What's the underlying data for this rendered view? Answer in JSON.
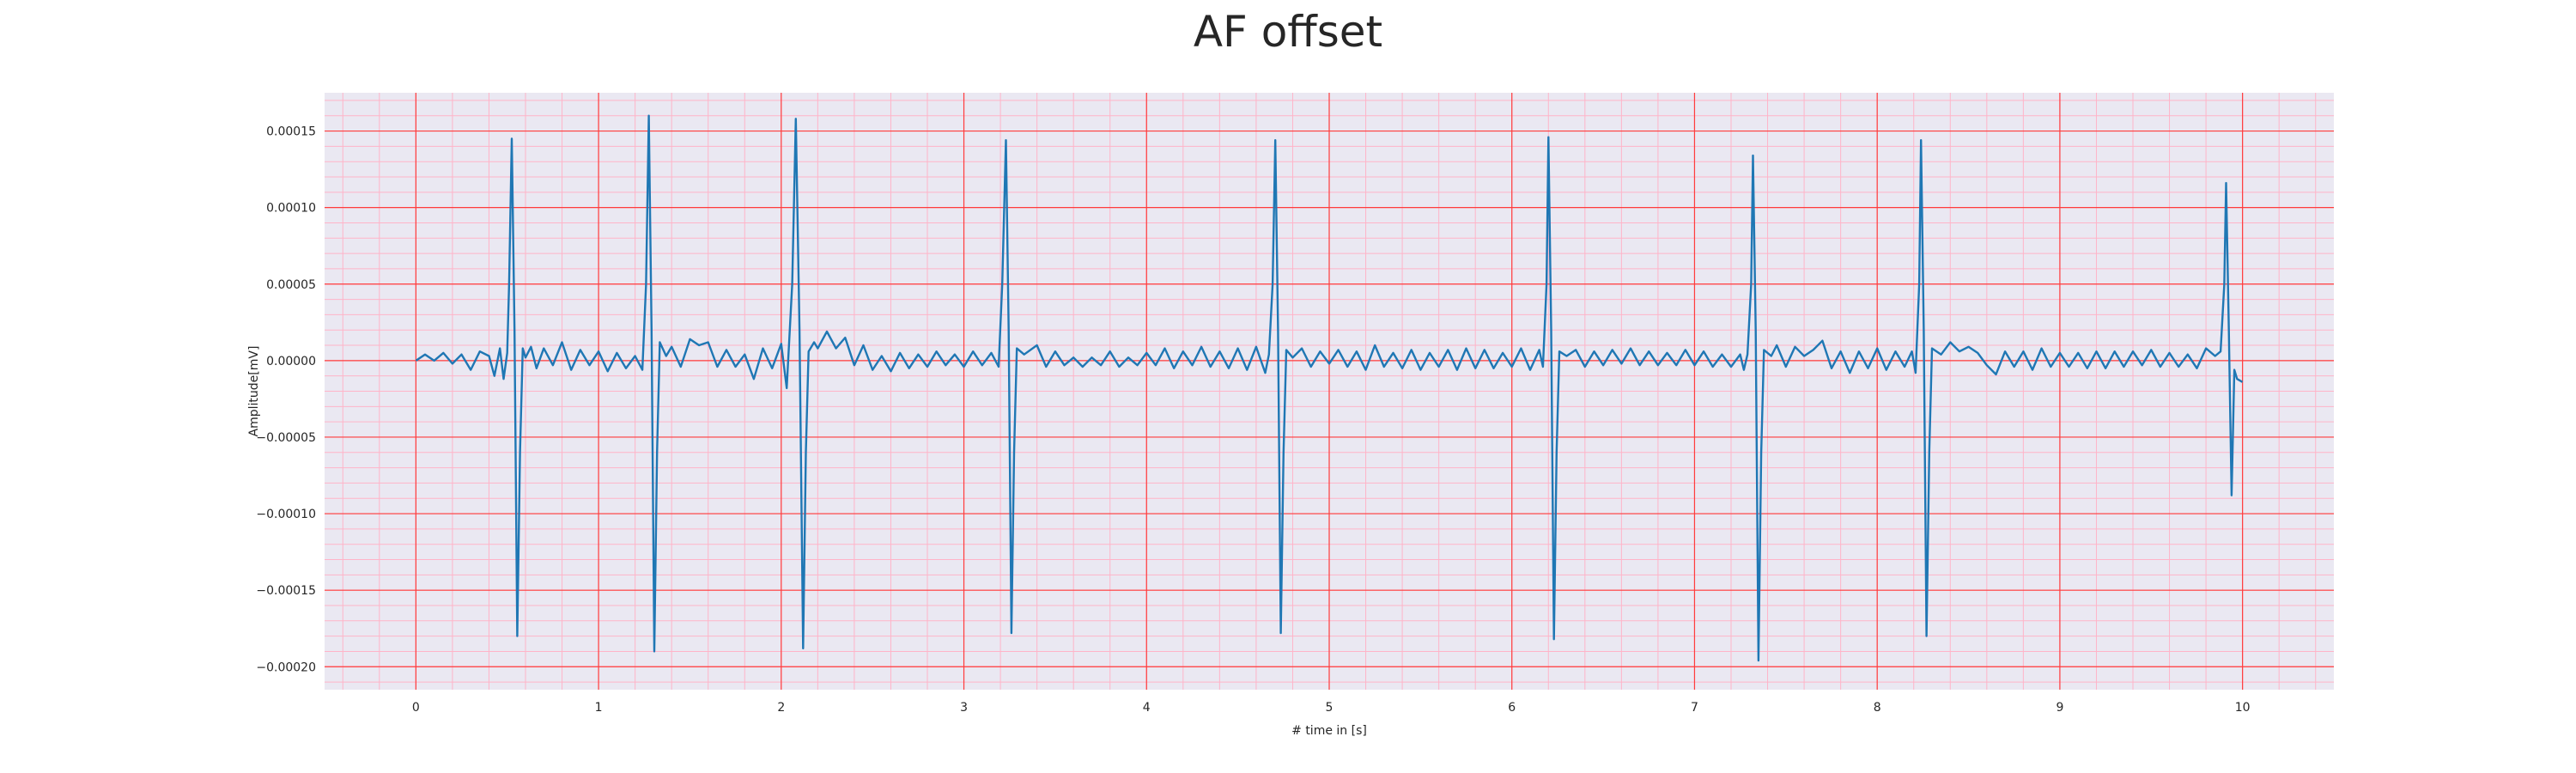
{
  "chart_data": {
    "type": "line",
    "title": "AF offset",
    "xlabel": "# time in [s]",
    "ylabel": "Amplitude[mV]",
    "xlim": [
      -0.5,
      10.5
    ],
    "ylim": [
      -0.000215,
      0.000175
    ],
    "x_ticks": [
      0,
      1,
      2,
      3,
      4,
      5,
      6,
      7,
      8,
      9,
      10
    ],
    "y_ticks": [
      0.00015,
      0.0001,
      5e-05,
      0,
      -5e-05,
      -0.0001,
      -0.00015,
      -0.0002
    ],
    "x_tick_labels": [
      "0",
      "1",
      "2",
      "3",
      "4",
      "5",
      "6",
      "7",
      "8",
      "9",
      "10"
    ],
    "y_tick_labels": [
      "0.00015",
      "0.00010",
      "0.00005",
      "0.00000",
      "−0.00005",
      "−0.00010",
      "−0.00015",
      "−0.00020"
    ],
    "grid": true,
    "minor_grid": true,
    "colors": {
      "line": "#1f77b4",
      "plot_background": "#eae8f2",
      "major_grid": "#ff3c3c",
      "minor_grid": "#ffb4c8"
    },
    "series": [
      {
        "points": [
          [
            0.0,
            0.0
          ],
          [
            0.05,
            4e-06
          ],
          [
            0.1,
            0.0
          ],
          [
            0.15,
            5e-06
          ],
          [
            0.2,
            -2e-06
          ],
          [
            0.25,
            4e-06
          ],
          [
            0.3,
            -6e-06
          ],
          [
            0.35,
            6e-06
          ],
          [
            0.4,
            3e-06
          ],
          [
            0.43,
            -1e-05
          ],
          [
            0.46,
            8e-06
          ],
          [
            0.48,
            -1.2e-05
          ],
          [
            0.5,
            5e-06
          ],
          [
            0.51,
            5e-05
          ],
          [
            0.525,
            0.000145
          ],
          [
            0.54,
            2e-05
          ],
          [
            0.555,
            -0.00018
          ],
          [
            0.57,
            -6e-05
          ],
          [
            0.585,
            8e-06
          ],
          [
            0.6,
            2e-06
          ],
          [
            0.63,
            9e-06
          ],
          [
            0.66,
            -5e-06
          ],
          [
            0.7,
            8e-06
          ],
          [
            0.75,
            -3e-06
          ],
          [
            0.8,
            1.2e-05
          ],
          [
            0.85,
            -6e-06
          ],
          [
            0.9,
            7e-06
          ],
          [
            0.95,
            -3e-06
          ],
          [
            1.0,
            6e-06
          ],
          [
            1.05,
            -7e-06
          ],
          [
            1.1,
            5e-06
          ],
          [
            1.15,
            -5e-06
          ],
          [
            1.2,
            3e-06
          ],
          [
            1.24,
            -6e-06
          ],
          [
            1.26,
            5e-05
          ],
          [
            1.275,
            0.00016
          ],
          [
            1.29,
            2e-05
          ],
          [
            1.305,
            -0.00019
          ],
          [
            1.32,
            -6e-05
          ],
          [
            1.335,
            1.2e-05
          ],
          [
            1.37,
            3e-06
          ],
          [
            1.4,
            9e-06
          ],
          [
            1.45,
            -4e-06
          ],
          [
            1.5,
            1.4e-05
          ],
          [
            1.55,
            1e-05
          ],
          [
            1.6,
            1.2e-05
          ],
          [
            1.65,
            -4e-06
          ],
          [
            1.7,
            7e-06
          ],
          [
            1.75,
            -4e-06
          ],
          [
            1.8,
            4e-06
          ],
          [
            1.85,
            -1.2e-05
          ],
          [
            1.9,
            8e-06
          ],
          [
            1.95,
            -5e-06
          ],
          [
            2.0,
            1.1e-05
          ],
          [
            2.03,
            -1.8e-05
          ],
          [
            2.06,
            5e-05
          ],
          [
            2.08,
            0.000158
          ],
          [
            2.1,
            2e-05
          ],
          [
            2.12,
            -0.000188
          ],
          [
            2.135,
            -6e-05
          ],
          [
            2.15,
            6e-06
          ],
          [
            2.18,
            1.2e-05
          ],
          [
            2.2,
            8e-06
          ],
          [
            2.25,
            1.9e-05
          ],
          [
            2.3,
            8e-06
          ],
          [
            2.35,
            1.5e-05
          ],
          [
            2.4,
            -3e-06
          ],
          [
            2.45,
            1e-05
          ],
          [
            2.5,
            -6e-06
          ],
          [
            2.55,
            3e-06
          ],
          [
            2.6,
            -7e-06
          ],
          [
            2.65,
            5e-06
          ],
          [
            2.7,
            -5e-06
          ],
          [
            2.75,
            4e-06
          ],
          [
            2.8,
            -4e-06
          ],
          [
            2.85,
            6e-06
          ],
          [
            2.9,
            -3e-06
          ],
          [
            2.95,
            4e-06
          ],
          [
            3.0,
            -4e-06
          ],
          [
            3.05,
            6e-06
          ],
          [
            3.1,
            -3e-06
          ],
          [
            3.15,
            5e-06
          ],
          [
            3.19,
            -4e-06
          ],
          [
            3.21,
            5e-05
          ],
          [
            3.23,
            0.000144
          ],
          [
            3.245,
            2e-05
          ],
          [
            3.26,
            -0.000178
          ],
          [
            3.275,
            -6e-05
          ],
          [
            3.29,
            8e-06
          ],
          [
            3.33,
            4e-06
          ],
          [
            3.4,
            1e-05
          ],
          [
            3.45,
            -4e-06
          ],
          [
            3.5,
            6e-06
          ],
          [
            3.55,
            -3e-06
          ],
          [
            3.6,
            2e-06
          ],
          [
            3.65,
            -4e-06
          ],
          [
            3.7,
            2e-06
          ],
          [
            3.75,
            -3e-06
          ],
          [
            3.8,
            6e-06
          ],
          [
            3.85,
            -4e-06
          ],
          [
            3.9,
            2e-06
          ],
          [
            3.95,
            -3e-06
          ],
          [
            4.0,
            5e-06
          ],
          [
            4.05,
            -3e-06
          ],
          [
            4.1,
            8e-06
          ],
          [
            4.15,
            -5e-06
          ],
          [
            4.2,
            6e-06
          ],
          [
            4.25,
            -3e-06
          ],
          [
            4.3,
            9e-06
          ],
          [
            4.35,
            -4e-06
          ],
          [
            4.4,
            6e-06
          ],
          [
            4.45,
            -5e-06
          ],
          [
            4.5,
            8e-06
          ],
          [
            4.55,
            -6e-06
          ],
          [
            4.6,
            9e-06
          ],
          [
            4.65,
            -8e-06
          ],
          [
            4.67,
            4e-06
          ],
          [
            4.69,
            5e-05
          ],
          [
            4.705,
            0.000144
          ],
          [
            4.72,
            2e-05
          ],
          [
            4.735,
            -0.000178
          ],
          [
            4.75,
            -6e-05
          ],
          [
            4.765,
            7e-06
          ],
          [
            4.8,
            2e-06
          ],
          [
            4.85,
            8e-06
          ],
          [
            4.9,
            -4e-06
          ],
          [
            4.95,
            6e-06
          ],
          [
            5.0,
            -2e-06
          ],
          [
            5.05,
            7e-06
          ],
          [
            5.1,
            -4e-06
          ],
          [
            5.15,
            6e-06
          ],
          [
            5.2,
            -6e-06
          ],
          [
            5.25,
            1e-05
          ],
          [
            5.3,
            -4e-06
          ],
          [
            5.35,
            5e-06
          ],
          [
            5.4,
            -5e-06
          ],
          [
            5.45,
            7e-06
          ],
          [
            5.5,
            -6e-06
          ],
          [
            5.55,
            5e-06
          ],
          [
            5.6,
            -4e-06
          ],
          [
            5.65,
            7e-06
          ],
          [
            5.7,
            -6e-06
          ],
          [
            5.75,
            8e-06
          ],
          [
            5.8,
            -5e-06
          ],
          [
            5.85,
            7e-06
          ],
          [
            5.9,
            -5e-06
          ],
          [
            5.95,
            5e-06
          ],
          [
            6.0,
            -4e-06
          ],
          [
            6.05,
            8e-06
          ],
          [
            6.1,
            -6e-06
          ],
          [
            6.15,
            7e-06
          ],
          [
            6.17,
            -4e-06
          ],
          [
            6.19,
            5e-05
          ],
          [
            6.2,
            0.000146
          ],
          [
            6.215,
            2e-05
          ],
          [
            6.23,
            -0.000182
          ],
          [
            6.245,
            -6e-05
          ],
          [
            6.26,
            6e-06
          ],
          [
            6.3,
            3e-06
          ],
          [
            6.35,
            7e-06
          ],
          [
            6.4,
            -4e-06
          ],
          [
            6.45,
            6e-06
          ],
          [
            6.5,
            -3e-06
          ],
          [
            6.55,
            7e-06
          ],
          [
            6.6,
            -2e-06
          ],
          [
            6.65,
            8e-06
          ],
          [
            6.7,
            -3e-06
          ],
          [
            6.75,
            6e-06
          ],
          [
            6.8,
            -3e-06
          ],
          [
            6.85,
            5e-06
          ],
          [
            6.9,
            -3e-06
          ],
          [
            6.95,
            7e-06
          ],
          [
            7.0,
            -3e-06
          ],
          [
            7.05,
            6e-06
          ],
          [
            7.1,
            -4e-06
          ],
          [
            7.15,
            4e-06
          ],
          [
            7.2,
            -4e-06
          ],
          [
            7.25,
            4e-06
          ],
          [
            7.27,
            -6e-06
          ],
          [
            7.29,
            4e-06
          ],
          [
            7.31,
            5e-05
          ],
          [
            7.32,
            0.000134
          ],
          [
            7.335,
            2e-05
          ],
          [
            7.35,
            -0.000196
          ],
          [
            7.365,
            -6e-05
          ],
          [
            7.38,
            7e-06
          ],
          [
            7.42,
            3e-06
          ],
          [
            7.45,
            1e-05
          ],
          [
            7.5,
            -4e-06
          ],
          [
            7.55,
            9e-06
          ],
          [
            7.6,
            3e-06
          ],
          [
            7.65,
            7e-06
          ],
          [
            7.7,
            1.3e-05
          ],
          [
            7.75,
            -5e-06
          ],
          [
            7.8,
            6e-06
          ],
          [
            7.85,
            -8e-06
          ],
          [
            7.9,
            6e-06
          ],
          [
            7.95,
            -5e-06
          ],
          [
            8.0,
            8e-06
          ],
          [
            8.05,
            -6e-06
          ],
          [
            8.1,
            6e-06
          ],
          [
            8.15,
            -4e-06
          ],
          [
            8.19,
            6e-06
          ],
          [
            8.21,
            -8e-06
          ],
          [
            8.23,
            5e-05
          ],
          [
            8.24,
            0.000144
          ],
          [
            8.255,
            2e-05
          ],
          [
            8.27,
            -0.00018
          ],
          [
            8.285,
            -6e-05
          ],
          [
            8.3,
            8e-06
          ],
          [
            8.35,
            4e-06
          ],
          [
            8.4,
            1.2e-05
          ],
          [
            8.45,
            6e-06
          ],
          [
            8.5,
            9e-06
          ],
          [
            8.55,
            5e-06
          ],
          [
            8.6,
            -3e-06
          ],
          [
            8.65,
            -9e-06
          ],
          [
            8.7,
            6e-06
          ],
          [
            8.75,
            -4e-06
          ],
          [
            8.8,
            6e-06
          ],
          [
            8.85,
            -6e-06
          ],
          [
            8.9,
            8e-06
          ],
          [
            8.95,
            -4e-06
          ],
          [
            9.0,
            5e-06
          ],
          [
            9.05,
            -4e-06
          ],
          [
            9.1,
            5e-06
          ],
          [
            9.15,
            -5e-06
          ],
          [
            9.2,
            6e-06
          ],
          [
            9.25,
            -5e-06
          ],
          [
            9.3,
            6e-06
          ],
          [
            9.35,
            -4e-06
          ],
          [
            9.4,
            6e-06
          ],
          [
            9.45,
            -3e-06
          ],
          [
            9.5,
            7e-06
          ],
          [
            9.55,
            -4e-06
          ],
          [
            9.6,
            5e-06
          ],
          [
            9.65,
            -4e-06
          ],
          [
            9.7,
            4e-06
          ],
          [
            9.75,
            -5e-06
          ],
          [
            9.8,
            8e-06
          ],
          [
            9.85,
            3e-06
          ],
          [
            9.88,
            6e-06
          ],
          [
            9.9,
            5e-05
          ],
          [
            9.91,
            0.000116
          ],
          [
            9.925,
            2e-05
          ],
          [
            9.94,
            -8.8e-05
          ],
          [
            9.955,
            -6e-06
          ],
          [
            9.97,
            -1.2e-05
          ],
          [
            10.0,
            -1.4e-05
          ]
        ]
      }
    ]
  }
}
